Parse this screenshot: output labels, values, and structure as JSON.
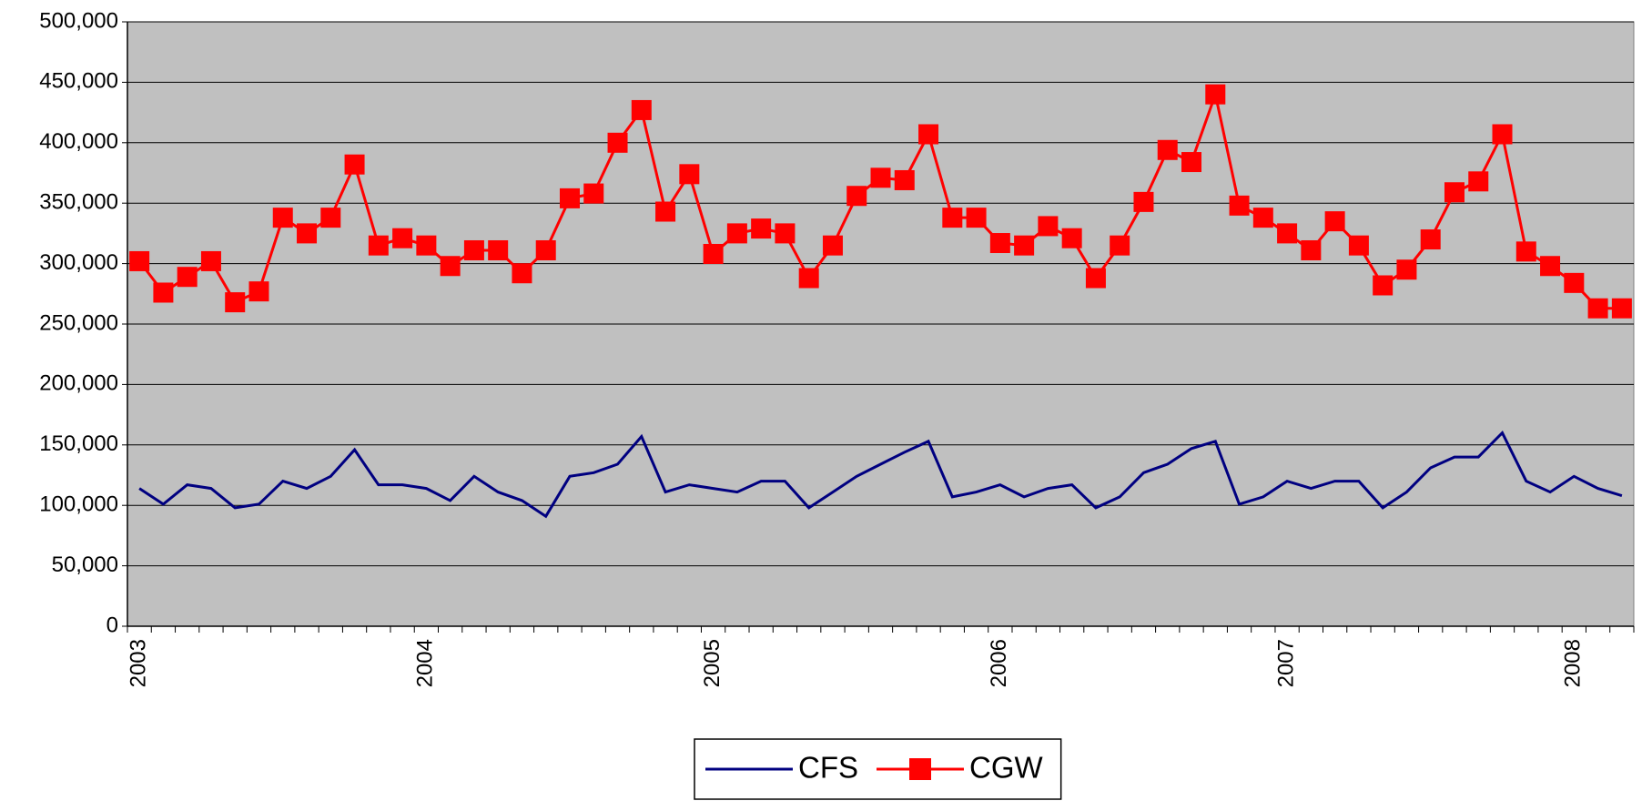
{
  "chart_data": {
    "type": "line",
    "categories": [
      "2003",
      null,
      null,
      null,
      null,
      null,
      null,
      null,
      null,
      null,
      null,
      null,
      "2004",
      null,
      null,
      null,
      null,
      null,
      null,
      null,
      null,
      null,
      null,
      null,
      "2005",
      null,
      null,
      null,
      null,
      null,
      null,
      null,
      null,
      null,
      null,
      null,
      "2006",
      null,
      null,
      null,
      null,
      null,
      null,
      null,
      null,
      null,
      null,
      null,
      "2007",
      null,
      null,
      null,
      null,
      null,
      null,
      null,
      null,
      null,
      null,
      null,
      "2008",
      null,
      null
    ],
    "series": [
      {
        "name": "CFS",
        "color": "#000080",
        "marker": false,
        "values": [
          114000,
          101000,
          117000,
          114000,
          98000,
          101000,
          120000,
          114000,
          124000,
          146000,
          117000,
          117000,
          114000,
          104000,
          124000,
          111000,
          104000,
          91000,
          124000,
          127000,
          134000,
          157000,
          111000,
          117000,
          114000,
          111000,
          120000,
          120000,
          98000,
          111000,
          124000,
          134000,
          144000,
          153000,
          107000,
          111000,
          117000,
          107000,
          114000,
          117000,
          98000,
          107000,
          127000,
          134000,
          147000,
          153000,
          101000,
          107000,
          120000,
          114000,
          120000,
          120000,
          98000,
          111000,
          131000,
          140000,
          140000,
          160000,
          120000,
          111000,
          124000,
          114000,
          108000
        ]
      },
      {
        "name": "CGW",
        "color": "#FF0000",
        "marker": true,
        "values": [
          302000,
          276000,
          289000,
          302000,
          268000,
          277000,
          338000,
          325000,
          338000,
          382000,
          315000,
          321000,
          315000,
          298000,
          311000,
          311000,
          292000,
          311000,
          354000,
          358000,
          400000,
          427000,
          343000,
          374000,
          308000,
          325000,
          329000,
          325000,
          288000,
          315000,
          356000,
          371000,
          369000,
          407000,
          338000,
          338000,
          317000,
          315000,
          331000,
          321000,
          288000,
          315000,
          351000,
          394000,
          384000,
          440000,
          348000,
          338000,
          325000,
          311000,
          335000,
          315000,
          282000,
          295000,
          320000,
          359000,
          368000,
          407000,
          310000,
          298000,
          284000,
          263000,
          263000
        ]
      }
    ],
    "ylim": [
      0,
      500000
    ],
    "yticks": [
      0,
      {
        "value": 50000,
        "label": "50,000"
      },
      {
        "value": 100000,
        "label": "100,000"
      },
      {
        "value": 150000,
        "label": "150,000"
      },
      {
        "value": 200000,
        "label": "200,000"
      },
      {
        "value": 250000,
        "label": "250,000"
      },
      {
        "value": 300000,
        "label": "300,000"
      },
      {
        "value": 350000,
        "label": "350,000"
      },
      {
        "value": 400000,
        "label": "400,000"
      },
      {
        "value": 450000,
        "label": "450,000"
      },
      {
        "value": 500000,
        "label": "500,000"
      }
    ],
    "grid": true,
    "plot_background": "#C0C0C0",
    "legend": "bottom"
  }
}
